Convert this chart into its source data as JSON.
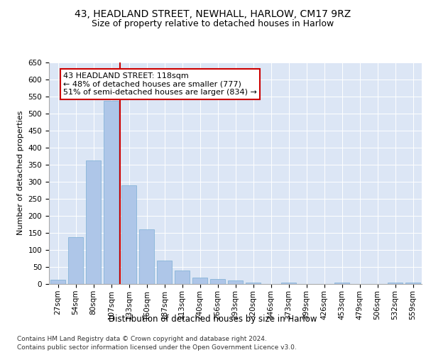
{
  "title1": "43, HEADLAND STREET, NEWHALL, HARLOW, CM17 9RZ",
  "title2": "Size of property relative to detached houses in Harlow",
  "xlabel": "Distribution of detached houses by size in Harlow",
  "ylabel": "Number of detached properties",
  "bar_labels": [
    "27sqm",
    "54sqm",
    "80sqm",
    "107sqm",
    "133sqm",
    "160sqm",
    "187sqm",
    "213sqm",
    "240sqm",
    "266sqm",
    "293sqm",
    "320sqm",
    "346sqm",
    "373sqm",
    "399sqm",
    "426sqm",
    "453sqm",
    "479sqm",
    "506sqm",
    "532sqm",
    "559sqm"
  ],
  "bar_values": [
    12,
    137,
    362,
    537,
    290,
    160,
    68,
    40,
    18,
    15,
    10,
    5,
    0,
    5,
    0,
    0,
    5,
    0,
    0,
    5,
    5
  ],
  "bar_color": "#aec6e8",
  "bar_edgecolor": "#7aadd4",
  "vline_x": 3.5,
  "vline_color": "#cc0000",
  "annotation_text": "43 HEADLAND STREET: 118sqm\n← 48% of detached houses are smaller (777)\n51% of semi-detached houses are larger (834) →",
  "annotation_box_color": "#ffffff",
  "annotation_box_edgecolor": "#cc0000",
  "ylim": [
    0,
    650
  ],
  "yticks": [
    0,
    50,
    100,
    150,
    200,
    250,
    300,
    350,
    400,
    450,
    500,
    550,
    600,
    650
  ],
  "footer1": "Contains HM Land Registry data © Crown copyright and database right 2024.",
  "footer2": "Contains public sector information licensed under the Open Government Licence v3.0.",
  "bg_color": "#dce6f5",
  "fig_bg_color": "#ffffff",
  "title1_fontsize": 10,
  "title2_fontsize": 9,
  "xlabel_fontsize": 8.5,
  "ylabel_fontsize": 8,
  "tick_fontsize": 7.5,
  "footer_fontsize": 6.5,
  "ann_fontsize": 8
}
